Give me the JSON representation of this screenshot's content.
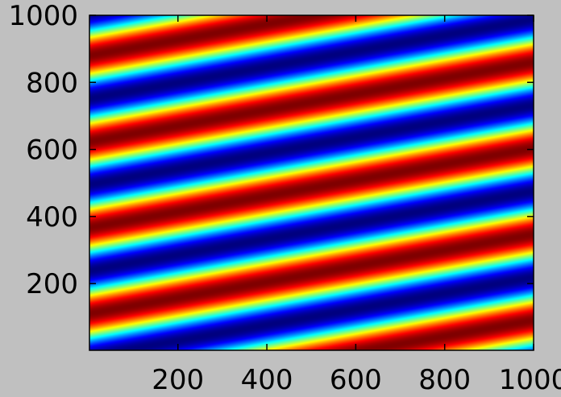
{
  "chart_data": {
    "type": "heatmap",
    "title": "",
    "xlabel": "",
    "ylabel": "",
    "xlim": [
      1,
      1000
    ],
    "ylim": [
      1,
      1000
    ],
    "x_ticks": [
      200,
      400,
      600,
      800,
      1000
    ],
    "y_ticks": [
      200,
      400,
      600,
      800,
      1000
    ],
    "x_tick_labels": [
      "200",
      "400",
      "600",
      "800",
      "1000"
    ],
    "y_tick_labels": [
      "200",
      "400",
      "600",
      "800",
      "1000"
    ],
    "grid": false,
    "colormap": "jet",
    "pattern": {
      "function": "cos",
      "x_coefficient": -0.0058,
      "y_coefficient": 0.0245,
      "phase": -2.7,
      "value_range": [
        -1,
        1
      ]
    },
    "colors": {
      "background": "#c0c0c0",
      "axis": "#000000"
    }
  }
}
